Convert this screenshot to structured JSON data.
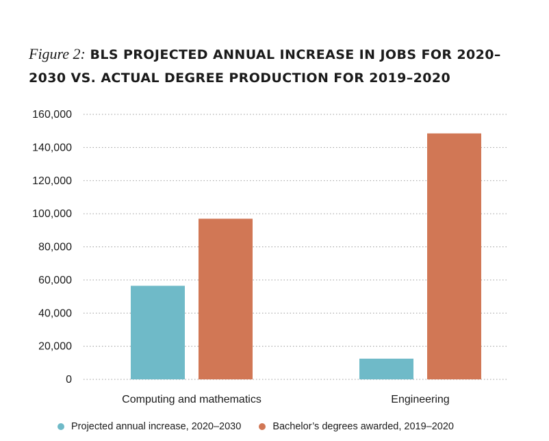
{
  "title": {
    "prefix": "Figure 2:",
    "text": "BLS PROJECTED ANNUAL INCREASE IN JOBS FOR 2020–2030 VS. ACTUAL DEGREE PRODUCTION FOR 2019–2020"
  },
  "chart_data": {
    "type": "bar",
    "categories": [
      "Computing and mathematics",
      "Engineering"
    ],
    "series": [
      {
        "name": "Projected annual increase, 2020–2030",
        "values": [
          56500,
          12500
        ],
        "color": "#6fbac8"
      },
      {
        "name": "Bachelor’s degrees awarded, 2019–2020",
        "values": [
          97000,
          148500
        ],
        "color": "#d17755"
      }
    ],
    "ylim": [
      0,
      160000
    ],
    "yticks": [
      0,
      20000,
      40000,
      60000,
      80000,
      100000,
      120000,
      140000,
      160000
    ],
    "ytick_labels": [
      "0",
      "20,000",
      "40,000",
      "60,000",
      "80,000",
      "100,000",
      "120,000",
      "140,000",
      "160,000"
    ],
    "xlabel": "",
    "ylabel": "",
    "grid": true,
    "legend_position": "bottom"
  }
}
